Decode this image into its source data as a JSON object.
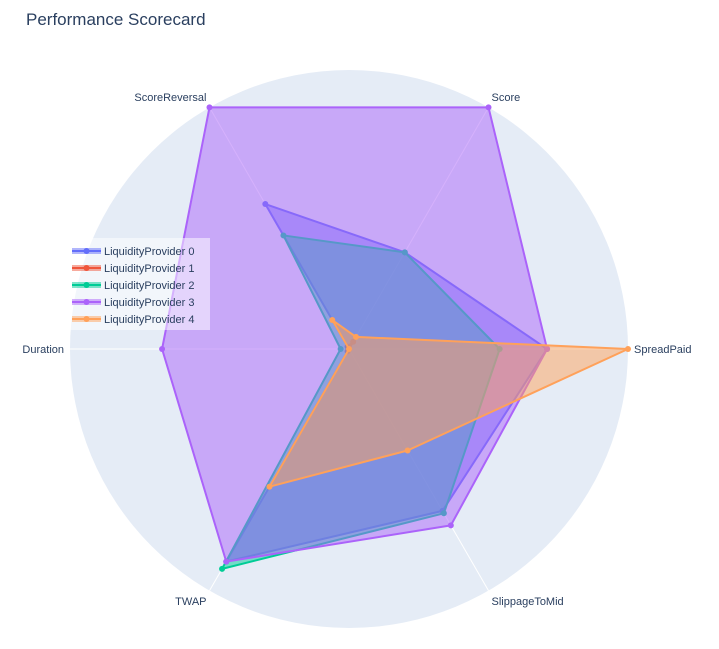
{
  "chart_data": {
    "type": "radar",
    "title": "Performance Scorecard",
    "axes": [
      "Score",
      "SpreadPaid",
      "SlippageToMid",
      "TWAP",
      "Duration",
      "ScoreReversal"
    ],
    "range": [
      0,
      1
    ],
    "legend_position": "left",
    "series": [
      {
        "name": "LiquidityProvider 0",
        "color": "#636efa",
        "values": [
          0.4,
          0.71,
          0.67,
          0.88,
          0.0,
          0.6
        ]
      },
      {
        "name": "LiquidityProvider 1",
        "color": "#EF553B",
        "values": [
          0.03,
          0.0,
          0.0,
          0.01,
          0.0,
          0.01
        ]
      },
      {
        "name": "LiquidityProvider 2",
        "color": "#00cc96",
        "values": [
          0.4,
          0.54,
          0.68,
          0.91,
          0.03,
          0.47
        ]
      },
      {
        "name": "LiquidityProvider 3",
        "color": "#ab63fa",
        "values": [
          1.0,
          0.71,
          0.73,
          0.88,
          0.67,
          1.0
        ]
      },
      {
        "name": "LiquidityProvider 4",
        "color": "#FFA15A",
        "values": [
          0.05,
          1.0,
          0.42,
          0.57,
          0.0,
          0.12
        ]
      }
    ]
  }
}
